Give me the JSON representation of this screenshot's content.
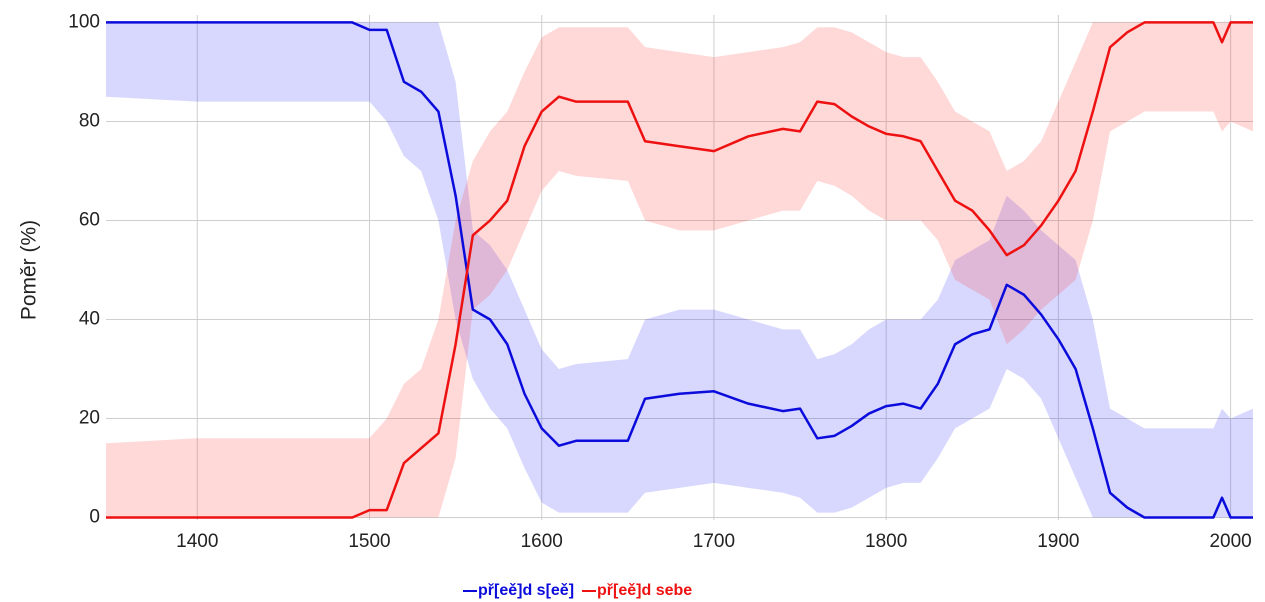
{
  "chart_data": {
    "type": "line",
    "y_label": "Poměr (%)",
    "x": [
      1347,
      1400,
      1450,
      1490,
      1500,
      1510,
      1520,
      1530,
      1540,
      1550,
      1560,
      1570,
      1580,
      1590,
      1600,
      1610,
      1620,
      1650,
      1660,
      1680,
      1700,
      1720,
      1740,
      1750,
      1760,
      1770,
      1780,
      1790,
      1800,
      1810,
      1820,
      1830,
      1840,
      1850,
      1860,
      1870,
      1880,
      1890,
      1900,
      1910,
      1920,
      1930,
      1940,
      1950,
      1980,
      1990,
      1995,
      2000,
      2013
    ],
    "series": [
      {
        "name": "př[eě]d s[eě]",
        "color": "#0b0bdc",
        "band_color": "rgba(40,40,255,0.18)",
        "values": [
          100,
          100,
          100,
          100,
          98.5,
          98.5,
          88,
          86,
          82,
          65,
          42,
          40,
          35,
          25,
          18,
          14.5,
          15.5,
          15.5,
          24,
          25,
          25.5,
          23,
          21.5,
          22,
          16,
          16.5,
          18.5,
          21,
          22.5,
          23,
          22,
          27,
          35,
          37,
          38,
          47,
          45,
          41,
          36,
          30,
          18,
          5,
          2,
          0,
          0,
          0,
          4,
          0,
          0
        ],
        "lower": [
          85,
          84,
          84,
          84,
          84,
          80,
          73,
          70,
          60,
          40,
          28,
          22,
          18,
          10,
          3,
          1,
          1,
          1,
          5,
          6,
          7,
          6,
          5,
          4,
          1,
          1,
          2,
          4,
          6,
          7,
          7,
          12,
          18,
          20,
          22,
          30,
          28,
          24,
          16,
          8,
          0,
          0,
          0,
          0,
          0,
          0,
          0,
          0,
          0
        ],
        "upper": [
          100,
          100,
          100,
          100,
          100,
          100,
          100,
          100,
          100,
          88,
          58,
          55,
          50,
          42,
          34,
          30,
          31,
          32,
          40,
          42,
          42,
          40,
          38,
          38,
          32,
          33,
          35,
          38,
          40,
          40,
          40,
          44,
          52,
          54,
          56,
          65,
          62,
          58,
          55,
          52,
          40,
          22,
          20,
          18,
          18,
          18,
          22,
          20,
          22
        ]
      },
      {
        "name": "př[eě]d sebe",
        "color": "#ee1111",
        "band_color": "rgba(255,40,40,0.18)",
        "values": [
          0,
          0,
          0,
          0,
          1.5,
          1.5,
          11,
          14,
          17,
          35,
          57,
          60,
          64,
          75,
          82,
          85,
          84,
          84,
          76,
          75,
          74,
          77,
          78.5,
          78,
          84,
          83.5,
          81,
          79,
          77.5,
          77,
          76,
          70,
          64,
          62,
          58,
          53,
          55,
          59,
          64,
          70,
          82,
          95,
          98,
          100,
          100,
          100,
          96,
          100,
          100
        ],
        "lower": [
          0,
          0,
          0,
          0,
          0,
          0,
          0,
          0,
          0,
          12,
          42,
          45,
          50,
          58,
          66,
          70,
          69,
          68,
          60,
          58,
          58,
          60,
          62,
          62,
          68,
          67,
          65,
          62,
          60,
          60,
          60,
          56,
          48,
          46,
          44,
          35,
          38,
          42,
          45,
          48,
          60,
          78,
          80,
          82,
          82,
          82,
          78,
          80,
          78
        ],
        "upper": [
          15,
          16,
          16,
          16,
          16,
          20,
          27,
          30,
          40,
          60,
          72,
          78,
          82,
          90,
          97,
          99,
          99,
          99,
          95,
          94,
          93,
          94,
          95,
          96,
          99,
          99,
          98,
          96,
          94,
          93,
          93,
          88,
          82,
          80,
          78,
          70,
          72,
          76,
          84,
          92,
          100,
          100,
          100,
          100,
          100,
          100,
          100,
          100,
          100
        ]
      }
    ],
    "xlim": [
      1347,
      2013
    ],
    "xticks": [
      1400,
      1500,
      1600,
      1700,
      1800,
      1900,
      2000
    ],
    "ylim": [
      -0.5,
      101.5
    ],
    "yticks": [
      0,
      20,
      40,
      60,
      80,
      100
    ],
    "grid": true,
    "legend": "bottom"
  }
}
